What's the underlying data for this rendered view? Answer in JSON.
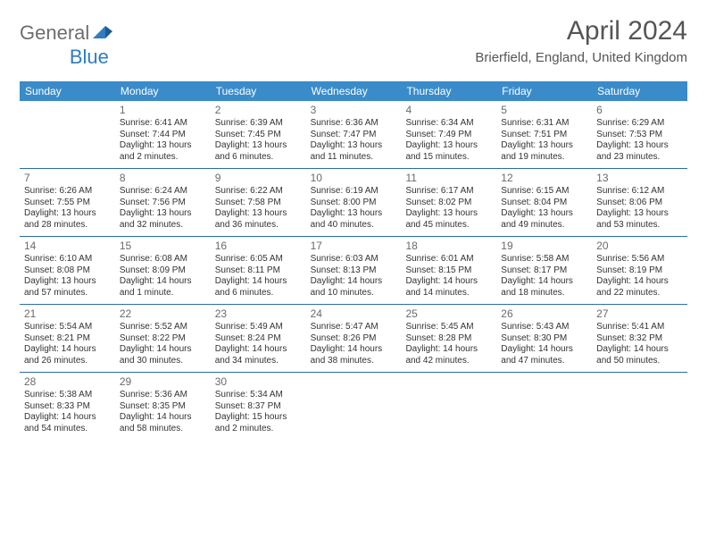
{
  "logo": {
    "part1": "General",
    "part2": "Blue"
  },
  "title": "April 2024",
  "location": "Brierfield, England, United Kingdom",
  "colors": {
    "header_bg": "#3a8bca",
    "header_text": "#ffffff",
    "row_border": "#2d6da3",
    "text": "#333333",
    "daynum": "#6a6a6a",
    "logo_gray": "#6e6e6e",
    "logo_blue": "#2f7dc0"
  },
  "day_headers": [
    "Sunday",
    "Monday",
    "Tuesday",
    "Wednesday",
    "Thursday",
    "Friday",
    "Saturday"
  ],
  "weeks": [
    [
      {
        "n": "",
        "sr": "",
        "ss": "",
        "d1": "",
        "d2": ""
      },
      {
        "n": "1",
        "sr": "Sunrise: 6:41 AM",
        "ss": "Sunset: 7:44 PM",
        "d1": "Daylight: 13 hours",
        "d2": "and 2 minutes."
      },
      {
        "n": "2",
        "sr": "Sunrise: 6:39 AM",
        "ss": "Sunset: 7:45 PM",
        "d1": "Daylight: 13 hours",
        "d2": "and 6 minutes."
      },
      {
        "n": "3",
        "sr": "Sunrise: 6:36 AM",
        "ss": "Sunset: 7:47 PM",
        "d1": "Daylight: 13 hours",
        "d2": "and 11 minutes."
      },
      {
        "n": "4",
        "sr": "Sunrise: 6:34 AM",
        "ss": "Sunset: 7:49 PM",
        "d1": "Daylight: 13 hours",
        "d2": "and 15 minutes."
      },
      {
        "n": "5",
        "sr": "Sunrise: 6:31 AM",
        "ss": "Sunset: 7:51 PM",
        "d1": "Daylight: 13 hours",
        "d2": "and 19 minutes."
      },
      {
        "n": "6",
        "sr": "Sunrise: 6:29 AM",
        "ss": "Sunset: 7:53 PM",
        "d1": "Daylight: 13 hours",
        "d2": "and 23 minutes."
      }
    ],
    [
      {
        "n": "7",
        "sr": "Sunrise: 6:26 AM",
        "ss": "Sunset: 7:55 PM",
        "d1": "Daylight: 13 hours",
        "d2": "and 28 minutes."
      },
      {
        "n": "8",
        "sr": "Sunrise: 6:24 AM",
        "ss": "Sunset: 7:56 PM",
        "d1": "Daylight: 13 hours",
        "d2": "and 32 minutes."
      },
      {
        "n": "9",
        "sr": "Sunrise: 6:22 AM",
        "ss": "Sunset: 7:58 PM",
        "d1": "Daylight: 13 hours",
        "d2": "and 36 minutes."
      },
      {
        "n": "10",
        "sr": "Sunrise: 6:19 AM",
        "ss": "Sunset: 8:00 PM",
        "d1": "Daylight: 13 hours",
        "d2": "and 40 minutes."
      },
      {
        "n": "11",
        "sr": "Sunrise: 6:17 AM",
        "ss": "Sunset: 8:02 PM",
        "d1": "Daylight: 13 hours",
        "d2": "and 45 minutes."
      },
      {
        "n": "12",
        "sr": "Sunrise: 6:15 AM",
        "ss": "Sunset: 8:04 PM",
        "d1": "Daylight: 13 hours",
        "d2": "and 49 minutes."
      },
      {
        "n": "13",
        "sr": "Sunrise: 6:12 AM",
        "ss": "Sunset: 8:06 PM",
        "d1": "Daylight: 13 hours",
        "d2": "and 53 minutes."
      }
    ],
    [
      {
        "n": "14",
        "sr": "Sunrise: 6:10 AM",
        "ss": "Sunset: 8:08 PM",
        "d1": "Daylight: 13 hours",
        "d2": "and 57 minutes."
      },
      {
        "n": "15",
        "sr": "Sunrise: 6:08 AM",
        "ss": "Sunset: 8:09 PM",
        "d1": "Daylight: 14 hours",
        "d2": "and 1 minute."
      },
      {
        "n": "16",
        "sr": "Sunrise: 6:05 AM",
        "ss": "Sunset: 8:11 PM",
        "d1": "Daylight: 14 hours",
        "d2": "and 6 minutes."
      },
      {
        "n": "17",
        "sr": "Sunrise: 6:03 AM",
        "ss": "Sunset: 8:13 PM",
        "d1": "Daylight: 14 hours",
        "d2": "and 10 minutes."
      },
      {
        "n": "18",
        "sr": "Sunrise: 6:01 AM",
        "ss": "Sunset: 8:15 PM",
        "d1": "Daylight: 14 hours",
        "d2": "and 14 minutes."
      },
      {
        "n": "19",
        "sr": "Sunrise: 5:58 AM",
        "ss": "Sunset: 8:17 PM",
        "d1": "Daylight: 14 hours",
        "d2": "and 18 minutes."
      },
      {
        "n": "20",
        "sr": "Sunrise: 5:56 AM",
        "ss": "Sunset: 8:19 PM",
        "d1": "Daylight: 14 hours",
        "d2": "and 22 minutes."
      }
    ],
    [
      {
        "n": "21",
        "sr": "Sunrise: 5:54 AM",
        "ss": "Sunset: 8:21 PM",
        "d1": "Daylight: 14 hours",
        "d2": "and 26 minutes."
      },
      {
        "n": "22",
        "sr": "Sunrise: 5:52 AM",
        "ss": "Sunset: 8:22 PM",
        "d1": "Daylight: 14 hours",
        "d2": "and 30 minutes."
      },
      {
        "n": "23",
        "sr": "Sunrise: 5:49 AM",
        "ss": "Sunset: 8:24 PM",
        "d1": "Daylight: 14 hours",
        "d2": "and 34 minutes."
      },
      {
        "n": "24",
        "sr": "Sunrise: 5:47 AM",
        "ss": "Sunset: 8:26 PM",
        "d1": "Daylight: 14 hours",
        "d2": "and 38 minutes."
      },
      {
        "n": "25",
        "sr": "Sunrise: 5:45 AM",
        "ss": "Sunset: 8:28 PM",
        "d1": "Daylight: 14 hours",
        "d2": "and 42 minutes."
      },
      {
        "n": "26",
        "sr": "Sunrise: 5:43 AM",
        "ss": "Sunset: 8:30 PM",
        "d1": "Daylight: 14 hours",
        "d2": "and 47 minutes."
      },
      {
        "n": "27",
        "sr": "Sunrise: 5:41 AM",
        "ss": "Sunset: 8:32 PM",
        "d1": "Daylight: 14 hours",
        "d2": "and 50 minutes."
      }
    ],
    [
      {
        "n": "28",
        "sr": "Sunrise: 5:38 AM",
        "ss": "Sunset: 8:33 PM",
        "d1": "Daylight: 14 hours",
        "d2": "and 54 minutes."
      },
      {
        "n": "29",
        "sr": "Sunrise: 5:36 AM",
        "ss": "Sunset: 8:35 PM",
        "d1": "Daylight: 14 hours",
        "d2": "and 58 minutes."
      },
      {
        "n": "30",
        "sr": "Sunrise: 5:34 AM",
        "ss": "Sunset: 8:37 PM",
        "d1": "Daylight: 15 hours",
        "d2": "and 2 minutes."
      },
      {
        "n": "",
        "sr": "",
        "ss": "",
        "d1": "",
        "d2": ""
      },
      {
        "n": "",
        "sr": "",
        "ss": "",
        "d1": "",
        "d2": ""
      },
      {
        "n": "",
        "sr": "",
        "ss": "",
        "d1": "",
        "d2": ""
      },
      {
        "n": "",
        "sr": "",
        "ss": "",
        "d1": "",
        "d2": ""
      }
    ]
  ]
}
